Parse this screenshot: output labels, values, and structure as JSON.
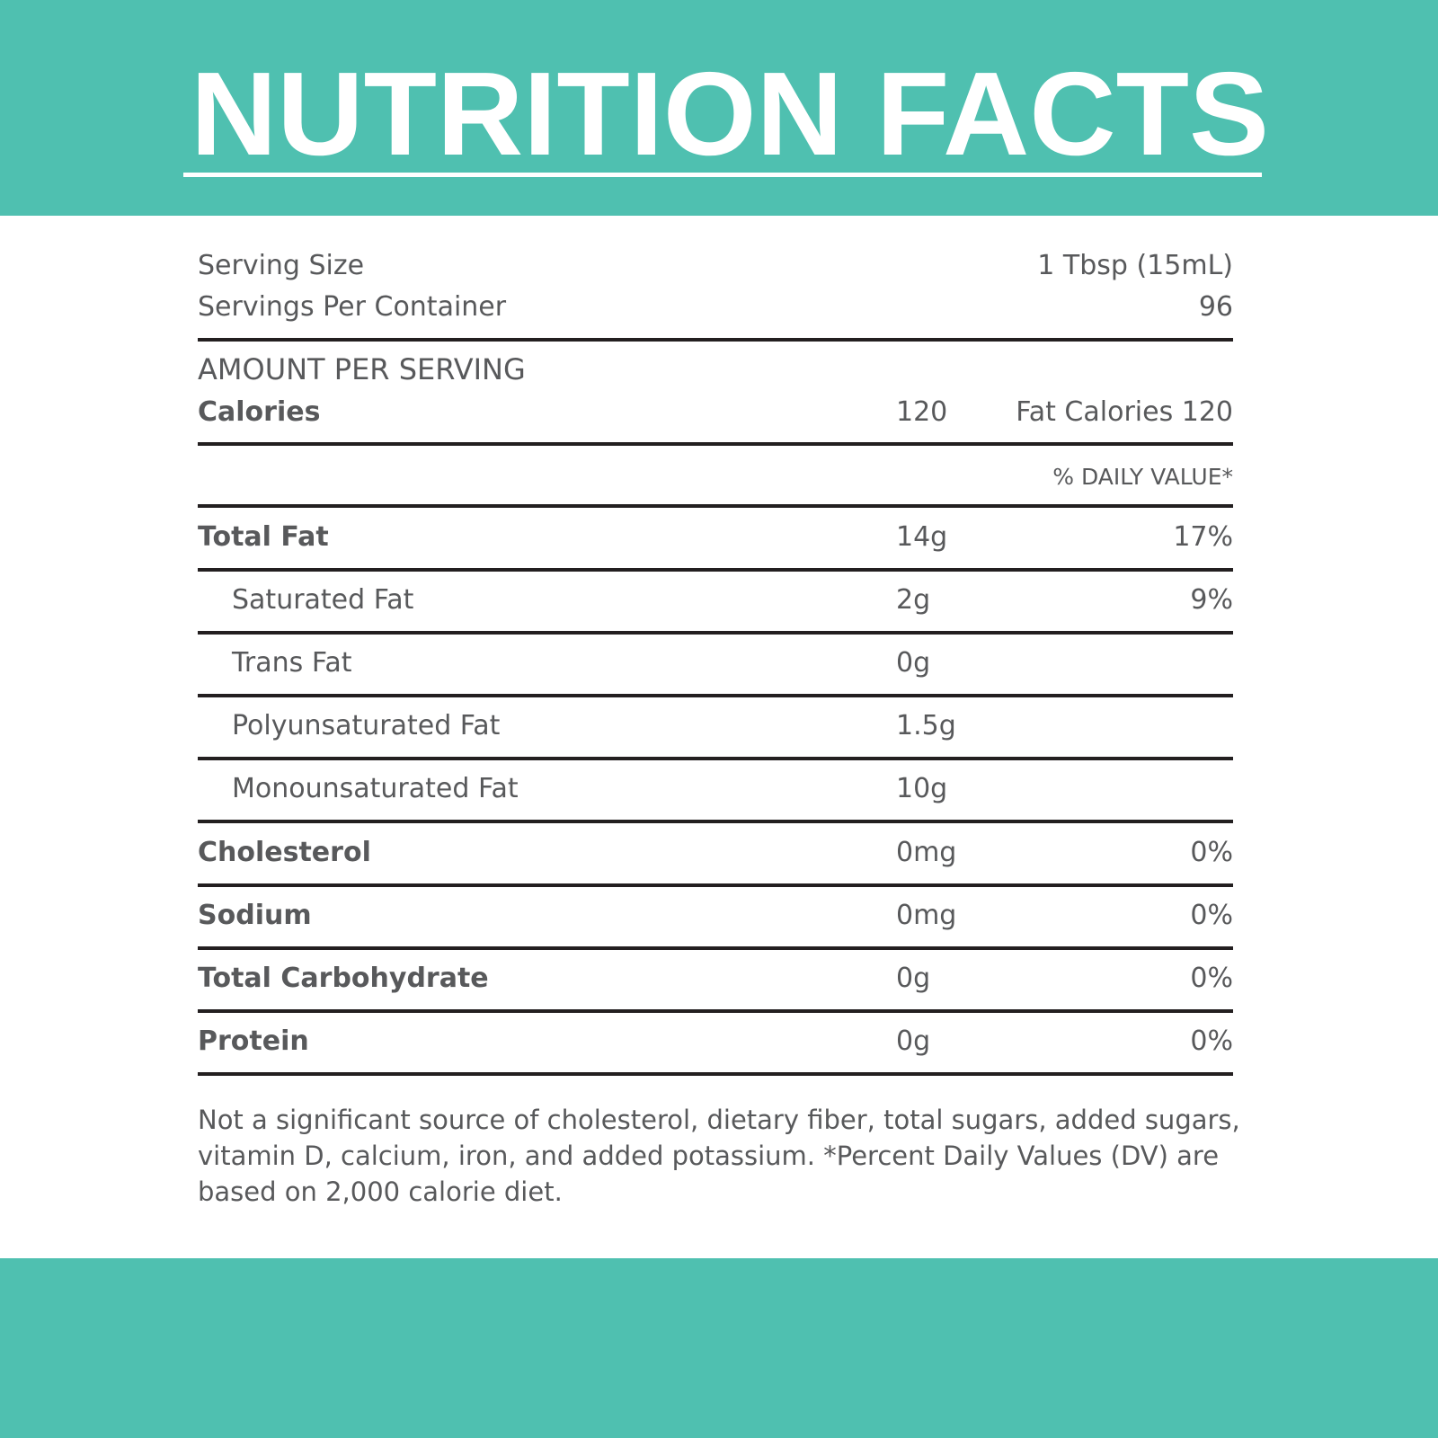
{
  "header": {
    "title": "NUTRITION FACTS"
  },
  "serving": {
    "size_label": "Serving Size",
    "size": "1 Tbsp (15mL)",
    "per_container_label": "Servings Per Container",
    "per_container": "96"
  },
  "amount_per_serving": "AMOUNT PER SERVING",
  "calories": {
    "label": "Calories",
    "value": "120",
    "fat_calories": "Fat Calories 120"
  },
  "daily_value_header": "% DAILY VALUE*",
  "table": {
    "rows": [
      [
        "Total Fat",
        "14g",
        "17%"
      ],
      [
        "Saturated Fat",
        "2g",
        "9%"
      ],
      [
        "Trans Fat",
        "0g"
      ],
      [
        "Polyunsaturated Fat",
        "1.5g"
      ],
      [
        "Monounsaturated Fat",
        "10g"
      ],
      [
        "Cholesterol",
        "0mg",
        "0%"
      ],
      [
        "Sodium",
        "0mg",
        "0%"
      ],
      [
        "Total Carbohydrate",
        "0g",
        "0%"
      ],
      [
        "Protein",
        "0g",
        "0%"
      ]
    ]
  },
  "footnote": "Not a significant source of cholesterol, dietary fiber, total sugars, added sugars, vitamin D, calcium, iron, and added potassium. *Percent Daily Values (DV) are based on 2,000 calorie diet."
}
